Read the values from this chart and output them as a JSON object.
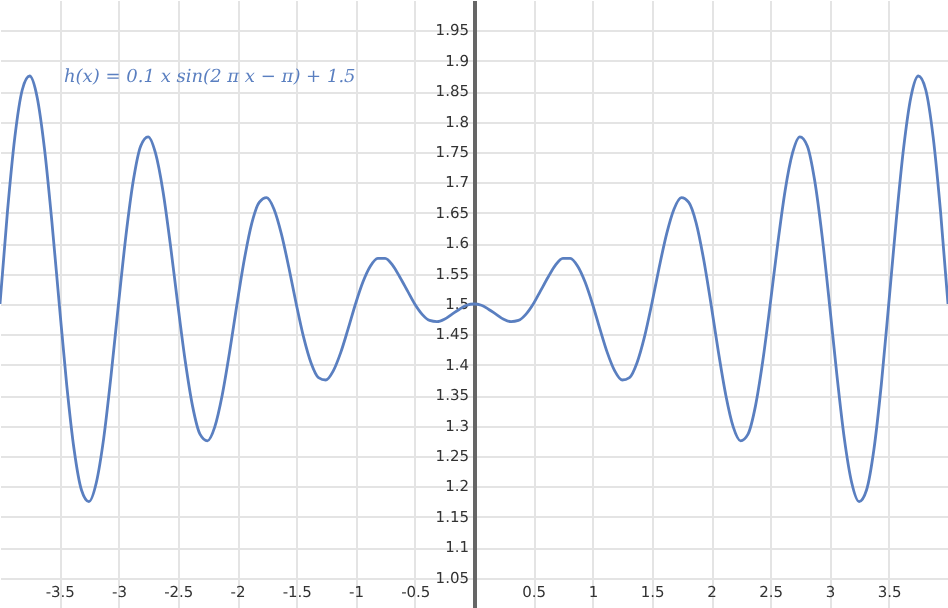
{
  "chart_data": {
    "type": "line",
    "x": [
      -4,
      -3.9375,
      -3.875,
      -3.8125,
      -3.75,
      -3.6875,
      -3.625,
      -3.5625,
      -3.5,
      -3.4375,
      -3.375,
      -3.3125,
      -3.25,
      -3.1875,
      -3.125,
      -3.0625,
      -3,
      -2.9375,
      -2.875,
      -2.8125,
      -2.75,
      -2.6875,
      -2.625,
      -2.5625,
      -2.5,
      -2.4375,
      -2.375,
      -2.3125,
      -2.25,
      -2.1875,
      -2.125,
      -2.0625,
      -2,
      -1.9375,
      -1.875,
      -1.8125,
      -1.75,
      -1.6875,
      -1.625,
      -1.5625,
      -1.5,
      -1.4375,
      -1.375,
      -1.3125,
      -1.25,
      -1.1875,
      -1.125,
      -1.0625,
      -1,
      -0.9375,
      -0.875,
      -0.8125,
      -0.75,
      -0.6875,
      -0.625,
      -0.5625,
      -0.5,
      -0.4375,
      -0.375,
      -0.3125,
      -0.25,
      -0.1875,
      -0.125,
      -0.0625,
      0,
      0.0625,
      0.125,
      0.1875,
      0.25,
      0.3125,
      0.375,
      0.4375,
      0.5,
      0.5625,
      0.625,
      0.6875,
      0.75,
      0.8125,
      0.875,
      0.9375,
      1,
      1.0625,
      1.125,
      1.1875,
      1.25,
      1.3125,
      1.375,
      1.4375,
      1.5,
      1.5625,
      1.625,
      1.6875,
      1.75,
      1.8125,
      1.875,
      1.9375,
      2,
      2.0625,
      2.125,
      2.1875,
      2.25,
      2.3125,
      2.375,
      2.4375,
      2.5,
      2.5625,
      2.625,
      2.6875,
      2.75,
      2.8125,
      2.875,
      2.9375,
      3,
      3.0625,
      3.125,
      3.1875,
      3.25,
      3.3125,
      3.375,
      3.4375,
      3.5,
      3.5625,
      3.625,
      3.6875,
      3.75,
      3.8125,
      3.875,
      3.9375,
      4
    ],
    "series": [
      {
        "name": "h(x) = 0.1 x sin(2 π x − π) + 1.5",
        "color": "#5a7fc0",
        "values": [
          1.5,
          1.651,
          1.774,
          1.852,
          1.875,
          1.841,
          1.756,
          1.636,
          1.5,
          1.368,
          1.261,
          1.194,
          1.175,
          1.206,
          1.279,
          1.383,
          1.5,
          1.612,
          1.703,
          1.76,
          1.775,
          1.748,
          1.686,
          1.598,
          1.5,
          1.407,
          1.332,
          1.286,
          1.275,
          1.298,
          1.35,
          1.421,
          1.5,
          1.574,
          1.633,
          1.667,
          1.675,
          1.656,
          1.615,
          1.56,
          1.5,
          1.445,
          1.403,
          1.379,
          1.375,
          1.39,
          1.42,
          1.459,
          1.5,
          1.536,
          1.562,
          1.575,
          1.575,
          1.564,
          1.544,
          1.522,
          1.5,
          1.483,
          1.473,
          1.471,
          1.475,
          1.483,
          1.491,
          1.498,
          1.5,
          1.498,
          1.491,
          1.483,
          1.475,
          1.471,
          1.473,
          1.483,
          1.5,
          1.522,
          1.544,
          1.564,
          1.575,
          1.575,
          1.562,
          1.536,
          1.5,
          1.459,
          1.42,
          1.39,
          1.375,
          1.379,
          1.403,
          1.445,
          1.5,
          1.56,
          1.615,
          1.656,
          1.675,
          1.667,
          1.633,
          1.574,
          1.5,
          1.421,
          1.35,
          1.298,
          1.275,
          1.286,
          1.332,
          1.407,
          1.5,
          1.598,
          1.686,
          1.748,
          1.775,
          1.76,
          1.703,
          1.612,
          1.5,
          1.383,
          1.279,
          1.206,
          1.175,
          1.194,
          1.261,
          1.368,
          1.5,
          1.636,
          1.756,
          1.841,
          1.875,
          1.852,
          1.774,
          1.651,
          1.5
        ]
      }
    ],
    "xlim": [
      -4,
      4
    ],
    "ylim": [
      1,
      2
    ],
    "xticks": [
      -3.5,
      -3,
      -2.5,
      -2,
      -1.5,
      -1,
      -0.5,
      0.5,
      1,
      1.5,
      2,
      2.5,
      3,
      3.5
    ],
    "yticks": [
      1.05,
      1.1,
      1.15,
      1.2,
      1.25,
      1.3,
      1.35,
      1.4,
      1.45,
      1.5,
      1.55,
      1.6,
      1.65,
      1.7,
      1.75,
      1.8,
      1.85,
      1.9,
      1.95
    ],
    "grid": true
  }
}
